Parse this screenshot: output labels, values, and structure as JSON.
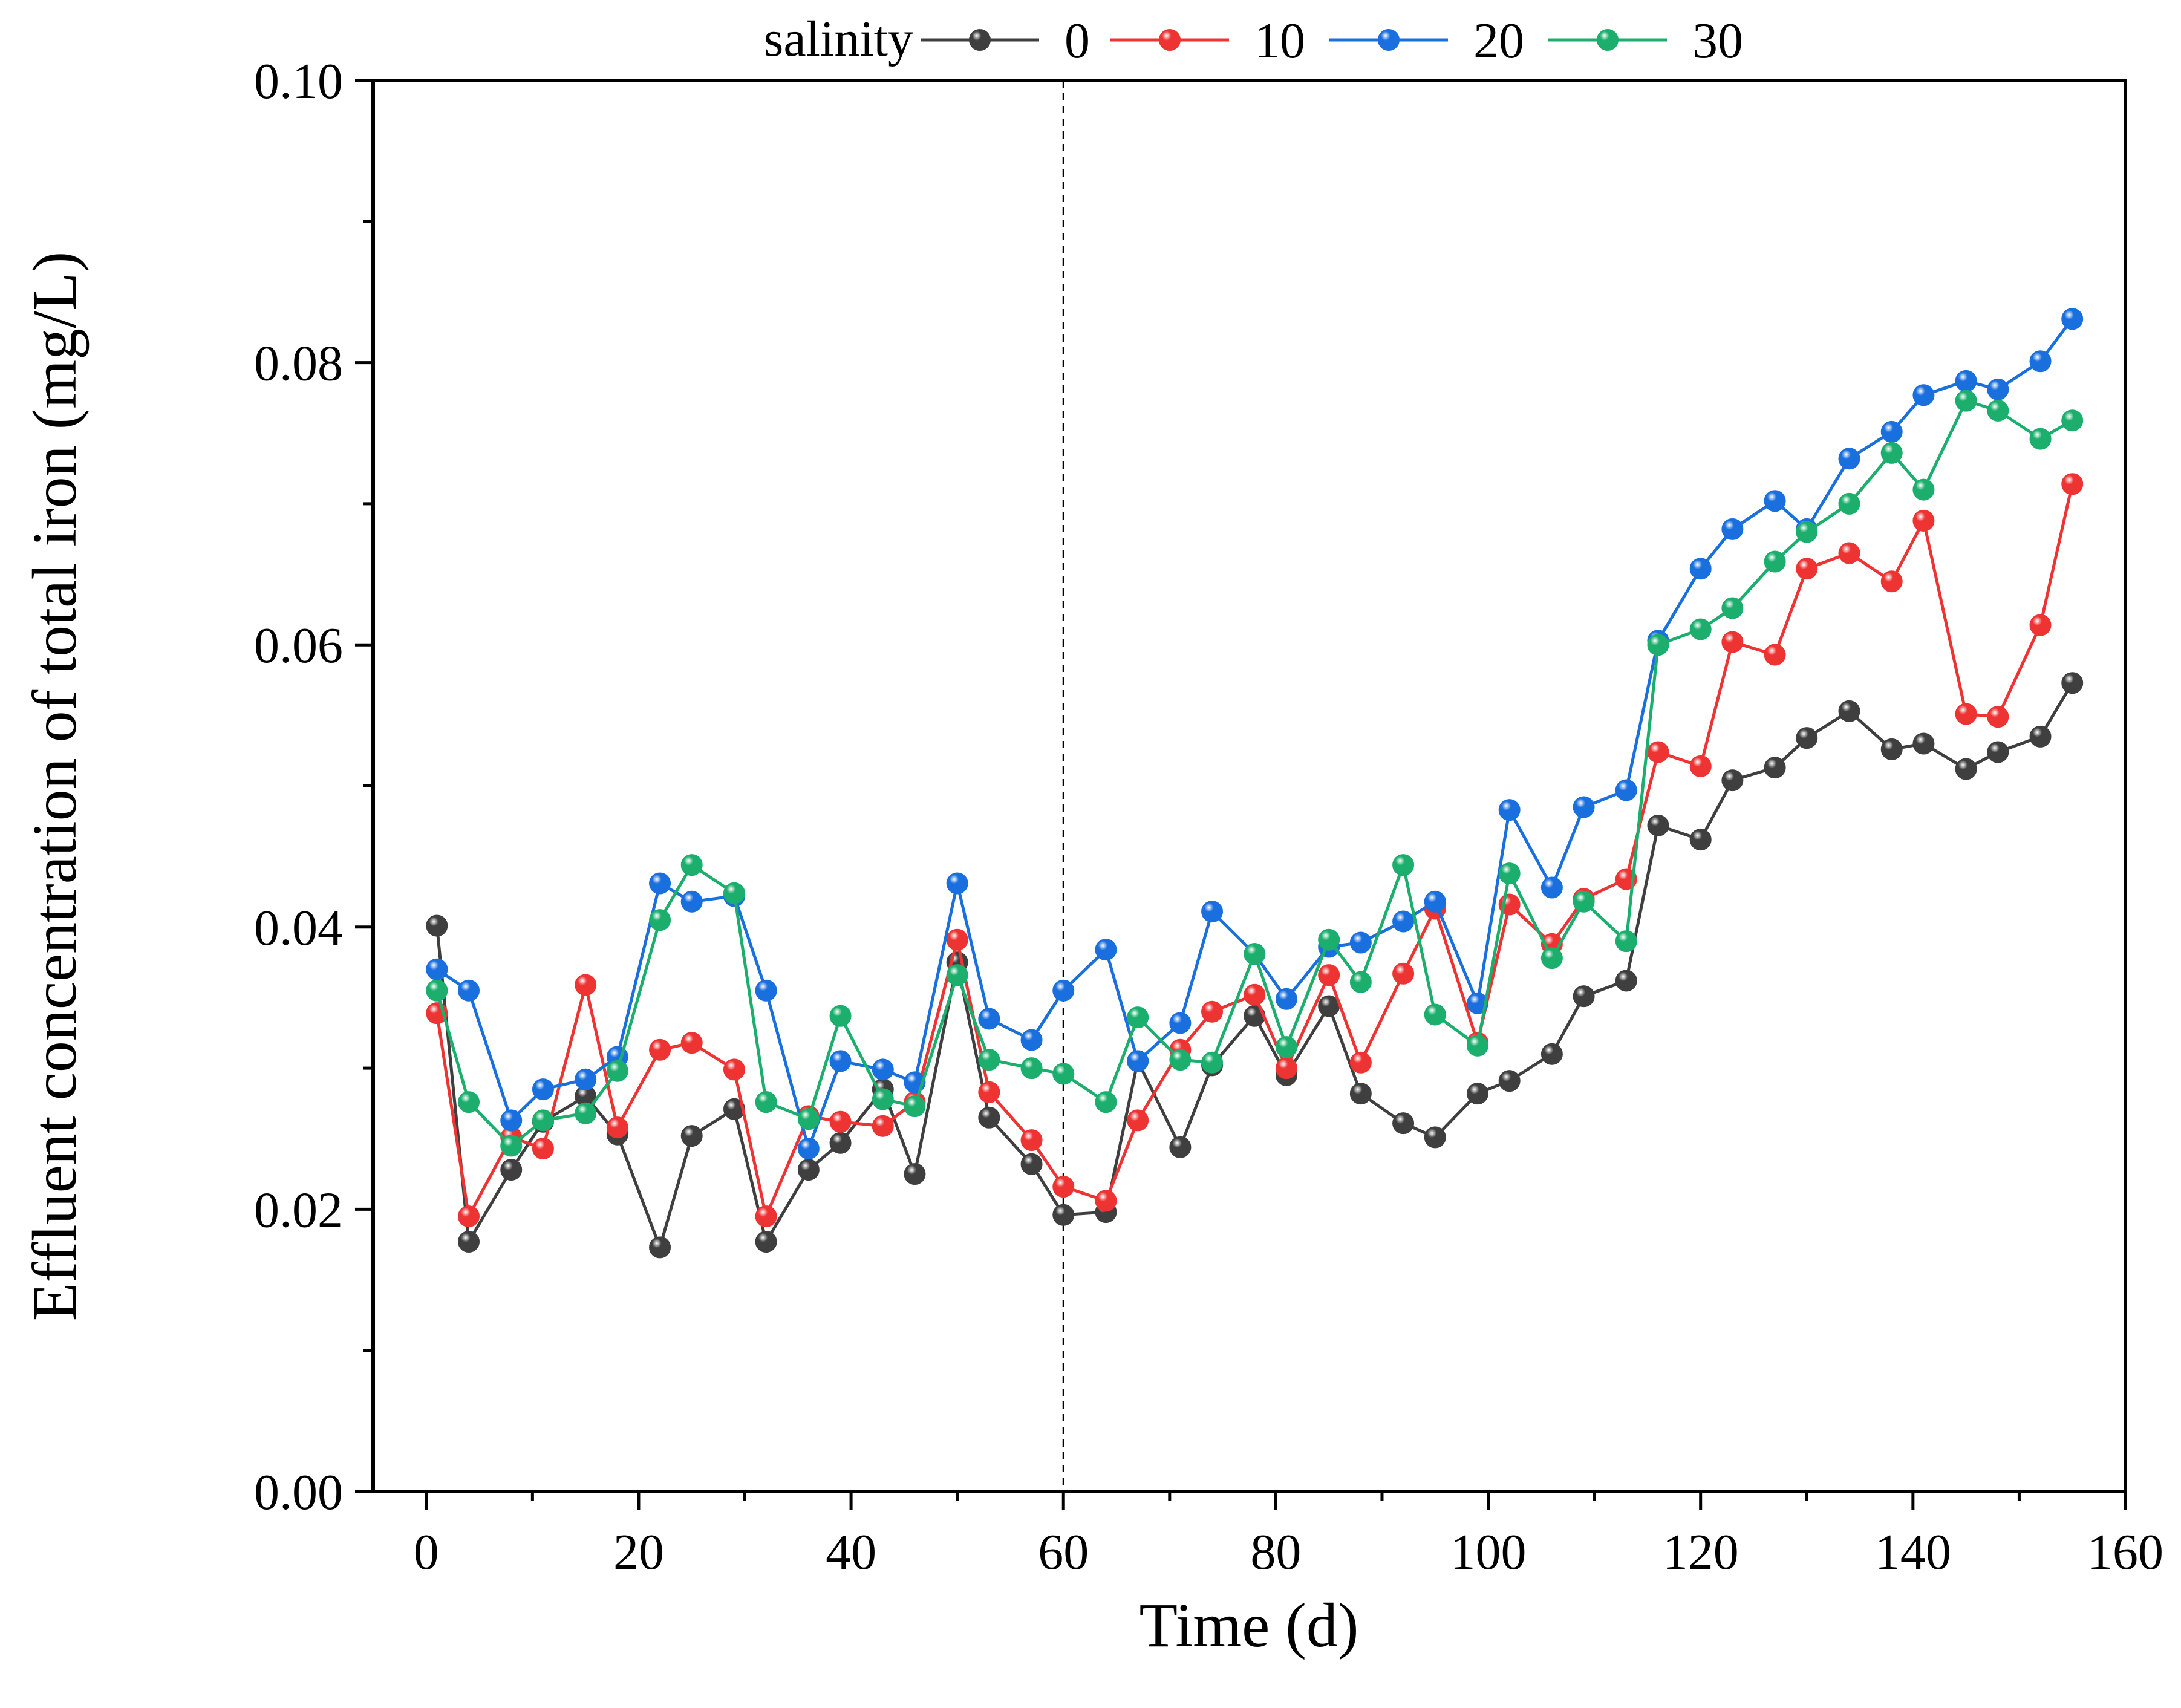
{
  "chart_data": {
    "type": "line",
    "title": "",
    "xlabel": "Time (d)",
    "ylabel": "Effluent concentration of total iron (mg/L)",
    "xlim": [
      -5,
      160
    ],
    "ylim": [
      0.0,
      0.1
    ],
    "xticks": [
      0,
      20,
      40,
      60,
      80,
      100,
      120,
      140,
      160
    ],
    "xtick_labels": [
      "0",
      "20",
      "40",
      "60",
      "80",
      "100",
      "120",
      "140",
      "160"
    ],
    "yticks": [
      0.0,
      0.02,
      0.04,
      0.06,
      0.08,
      0.1
    ],
    "ytick_labels": [
      "0.00",
      "0.02",
      "0.04",
      "0.06",
      "0.08",
      "0.10"
    ],
    "reference_line_x": 60,
    "legend": {
      "title": "salinity",
      "placement": "top",
      "entries": [
        "0",
        "10",
        "20",
        "30"
      ]
    },
    "x": [
      1,
      4,
      8,
      11,
      15,
      18,
      22,
      25,
      29,
      32,
      36,
      39,
      43,
      46,
      50,
      53,
      57,
      60,
      64,
      67,
      71,
      74,
      78,
      81,
      85,
      88,
      92,
      95,
      99,
      102,
      106,
      109,
      113,
      116,
      120,
      123,
      127,
      130,
      134,
      138,
      141,
      145,
      148,
      152,
      155
    ],
    "series": [
      {
        "name": "0",
        "color": "#3f3f3f",
        "values": [
          0.0401,
          0.0177,
          0.0228,
          0.0262,
          0.028,
          0.0253,
          0.0173,
          0.0252,
          0.0271,
          0.0177,
          0.0228,
          0.0247,
          0.0285,
          0.0225,
          0.0375,
          0.0265,
          0.0232,
          0.0196,
          0.0198,
          0.0305,
          0.0244,
          0.0302,
          0.0337,
          0.0295,
          0.0344,
          0.0282,
          0.0261,
          0.0251,
          0.0282,
          0.0291,
          0.031,
          0.0351,
          0.0362,
          0.0472,
          0.0462,
          0.0504,
          0.0513,
          0.0534,
          0.0553,
          0.0526,
          0.053,
          0.0512,
          0.0524,
          0.0535,
          0.0573
        ]
      },
      {
        "name": "10",
        "color": "#ee3333",
        "values": [
          0.0339,
          0.0195,
          0.0251,
          0.0243,
          0.0359,
          0.0258,
          0.0313,
          0.0318,
          0.0299,
          0.0195,
          0.0266,
          0.0262,
          0.0259,
          0.0276,
          0.0391,
          0.0283,
          0.0249,
          0.0216,
          0.0206,
          0.0263,
          0.0313,
          0.034,
          0.0352,
          0.03,
          0.0366,
          0.0304,
          0.0367,
          0.0413,
          0.0318,
          0.0416,
          0.0388,
          0.042,
          0.0434,
          0.0524,
          0.0514,
          0.0602,
          0.0593,
          0.0654,
          0.0665,
          0.0645,
          0.0688,
          0.0551,
          0.0549,
          0.0614,
          0.0714
        ]
      },
      {
        "name": "20",
        "color": "#1a6fdf",
        "values": [
          0.037,
          0.0355,
          0.0263,
          0.0285,
          0.0292,
          0.0308,
          0.0431,
          0.0418,
          0.0422,
          0.0355,
          0.0243,
          0.0305,
          0.0299,
          0.029,
          0.0431,
          0.0335,
          0.032,
          0.0355,
          0.0384,
          0.0305,
          0.0332,
          0.0411,
          0.0381,
          0.0349,
          0.0386,
          0.0389,
          0.0404,
          0.0418,
          0.0346,
          0.0483,
          0.0428,
          0.0485,
          0.0497,
          0.0603,
          0.0654,
          0.0682,
          0.0702,
          0.0682,
          0.0732,
          0.0751,
          0.0777,
          0.0787,
          0.0781,
          0.0801,
          0.0831
        ]
      },
      {
        "name": "30",
        "color": "#1bae6c",
        "values": [
          0.0355,
          0.0276,
          0.0245,
          0.0263,
          0.0268,
          0.0298,
          0.0405,
          0.0444,
          0.0424,
          0.0276,
          0.0264,
          0.0337,
          0.0278,
          0.0273,
          0.0366,
          0.0306,
          0.03,
          0.0296,
          0.0276,
          0.0336,
          0.0306,
          0.0304,
          0.0381,
          0.0315,
          0.0391,
          0.0361,
          0.0444,
          0.0338,
          0.0316,
          0.0438,
          0.0378,
          0.0418,
          0.039,
          0.06,
          0.0611,
          0.0626,
          0.0659,
          0.068,
          0.07,
          0.0736,
          0.071,
          0.0773,
          0.0766,
          0.0746,
          0.0759
        ]
      }
    ]
  }
}
